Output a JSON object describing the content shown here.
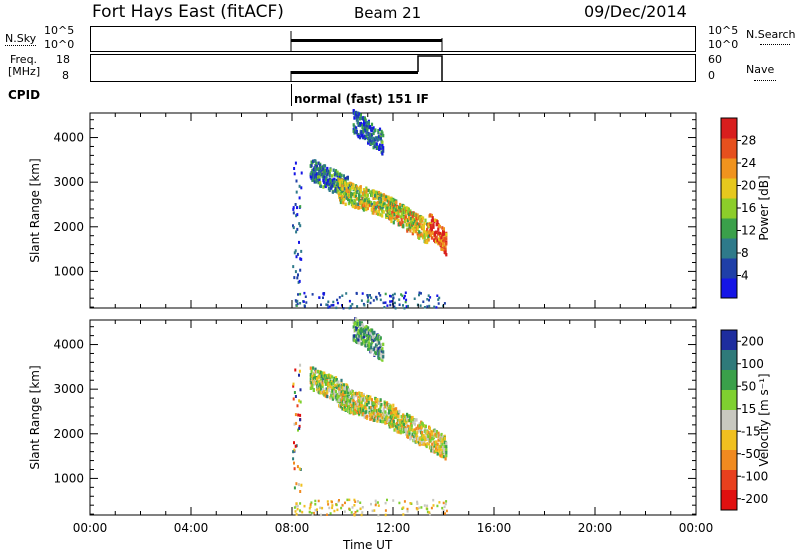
{
  "header": {
    "radar": "Fort Hays East (fitACF)",
    "beam": "Beam 21",
    "date": "09/Dec/2014"
  },
  "aux_panels": {
    "nsky_label": "N.Sky",
    "nsky_ticks": [
      "10^5",
      "10^0"
    ],
    "nsearch_label": "N.Search",
    "freq_label_1": "Freq.",
    "freq_label_2": "[MHz]",
    "freq_ticks": [
      "18",
      "8"
    ],
    "nave_ticks": [
      "60",
      "0"
    ],
    "nave_label": "Nave",
    "cpid_label": "CPID",
    "cpid_text": "normal (fast) 151 IF"
  },
  "chart_data": [
    {
      "type": "heatmap",
      "name": "power",
      "ylabel": "Slant Range [km]",
      "yticks": [
        1000,
        2000,
        3000,
        4000
      ],
      "ylim": [
        180,
        4550
      ],
      "xlim": [
        0,
        24
      ],
      "colorbar_label": "Power [dB]",
      "colorbar_ticks": [
        4,
        8,
        12,
        16,
        20,
        24,
        28
      ],
      "colorbar_range": [
        0,
        32
      ],
      "colors": [
        "#1515e6",
        "#1f3fa8",
        "#2e7a8a",
        "#3aa04a",
        "#8ccd2a",
        "#e6c81e",
        "#f0931e",
        "#e6501e",
        "#d81e1e"
      ],
      "echo_bands": [
        {
          "t_start": 8.7,
          "t_end": 10.2,
          "range_start": 3300,
          "range_end": 2900,
          "level": 0.25
        },
        {
          "t_start": 9.8,
          "t_end": 12.0,
          "range_start": 2850,
          "range_end": 2450,
          "level": 0.55
        },
        {
          "t_start": 11.8,
          "t_end": 13.4,
          "range_start": 2450,
          "range_end": 1900,
          "level": 0.6
        },
        {
          "t_start": 13.4,
          "t_end": 14.1,
          "range_start": 2100,
          "range_end": 1650,
          "level": 0.85
        },
        {
          "t_start": 10.4,
          "t_end": 11.6,
          "range_start": 4400,
          "range_end": 3900,
          "level": 0.2
        }
      ]
    },
    {
      "type": "heatmap",
      "name": "velocity",
      "xlabel": "Time UT",
      "xticks": [
        "00:00",
        "04:00",
        "08:00",
        "12:00",
        "16:00",
        "20:00",
        "00:00"
      ],
      "ylabel": "Slant Range [km]",
      "yticks": [
        1000,
        2000,
        3000,
        4000
      ],
      "ylim": [
        180,
        4550
      ],
      "xlim": [
        0,
        24
      ],
      "colorbar_label": "Velocity [m s⁻¹]",
      "colorbar_ticks": [
        "200",
        "100",
        "50",
        "15",
        "-15",
        "-50",
        "-100",
        "-200"
      ],
      "colorbar_range": [
        -250,
        250
      ],
      "colors": [
        "#1e2d9e",
        "#2f7a7a",
        "#3aa04a",
        "#7fd030",
        "#c8c8c0",
        "#f0c020",
        "#f08a20",
        "#e8401e",
        "#e01010"
      ],
      "echo_bands": [
        {
          "t_start": 8.7,
          "t_end": 10.2,
          "range_start": 3300,
          "range_end": 2900,
          "level": 0.45
        },
        {
          "t_start": 9.8,
          "t_end": 12.0,
          "range_start": 2850,
          "range_end": 2450,
          "level": 0.5
        },
        {
          "t_start": 11.8,
          "t_end": 14.1,
          "range_start": 2450,
          "range_end": 1700,
          "level": 0.5
        },
        {
          "t_start": 10.4,
          "t_end": 11.6,
          "range_start": 4400,
          "range_end": 3900,
          "level": 0.3
        }
      ]
    }
  ]
}
